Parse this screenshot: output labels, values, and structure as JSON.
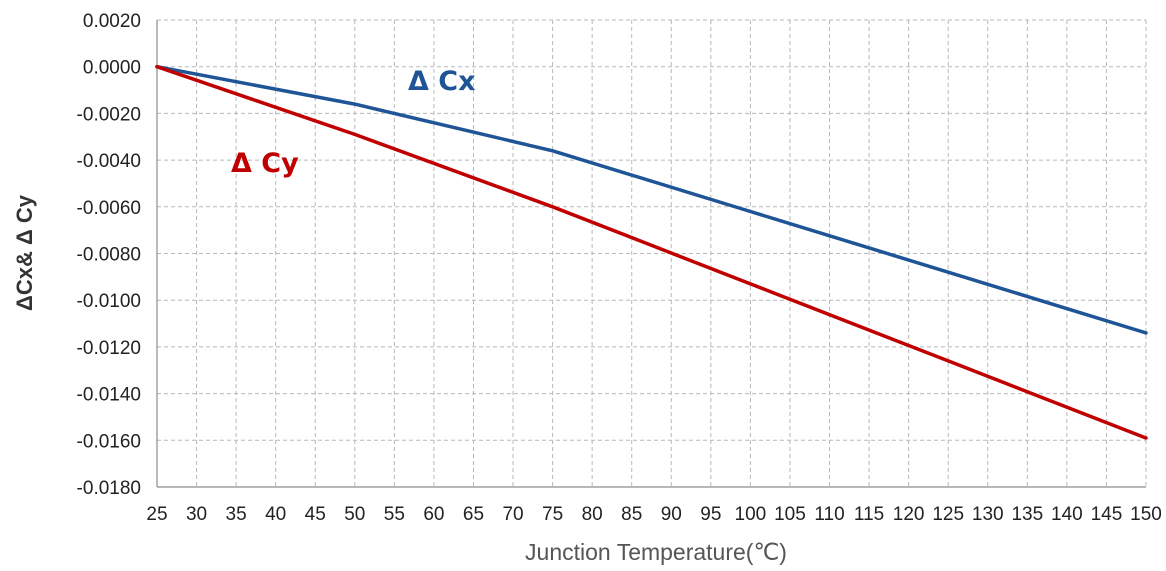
{
  "chart_data": {
    "type": "line",
    "xlabel": "Junction Temperature(℃)",
    "ylabel": "ΔCx& Δ Cy",
    "xlim": [
      25,
      150
    ],
    "ylim": [
      -0.018,
      0.002
    ],
    "x_ticks": [
      25,
      30,
      35,
      40,
      45,
      50,
      55,
      60,
      65,
      70,
      75,
      80,
      85,
      90,
      95,
      100,
      105,
      110,
      115,
      120,
      125,
      130,
      135,
      140,
      145,
      150
    ],
    "y_ticks": [
      0.002,
      0.0,
      -0.002,
      -0.004,
      -0.006,
      -0.008,
      -0.01,
      -0.012,
      -0.014,
      -0.016,
      -0.018
    ],
    "y_tick_labels": [
      "0.0020",
      "0.0000",
      "-0.0020",
      "-0.0040",
      "-0.0060",
      "-0.0080",
      "-0.0100",
      "-0.0120",
      "-0.0140",
      "-0.0160",
      "-0.0180"
    ],
    "grid": true,
    "series": [
      {
        "name": "Δ Cx",
        "color": "#1f5597",
        "x": [
          25,
          50,
          75,
          100,
          125,
          150
        ],
        "y": [
          0.0,
          -0.0016,
          -0.0036,
          -0.0062,
          -0.0088,
          -0.0114
        ]
      },
      {
        "name": "Δ Cy",
        "color": "#c00000",
        "x": [
          25,
          50,
          75,
          100,
          125,
          150
        ],
        "y": [
          0.0,
          -0.0029,
          -0.006,
          -0.0093,
          -0.0126,
          -0.0159
        ]
      }
    ]
  }
}
